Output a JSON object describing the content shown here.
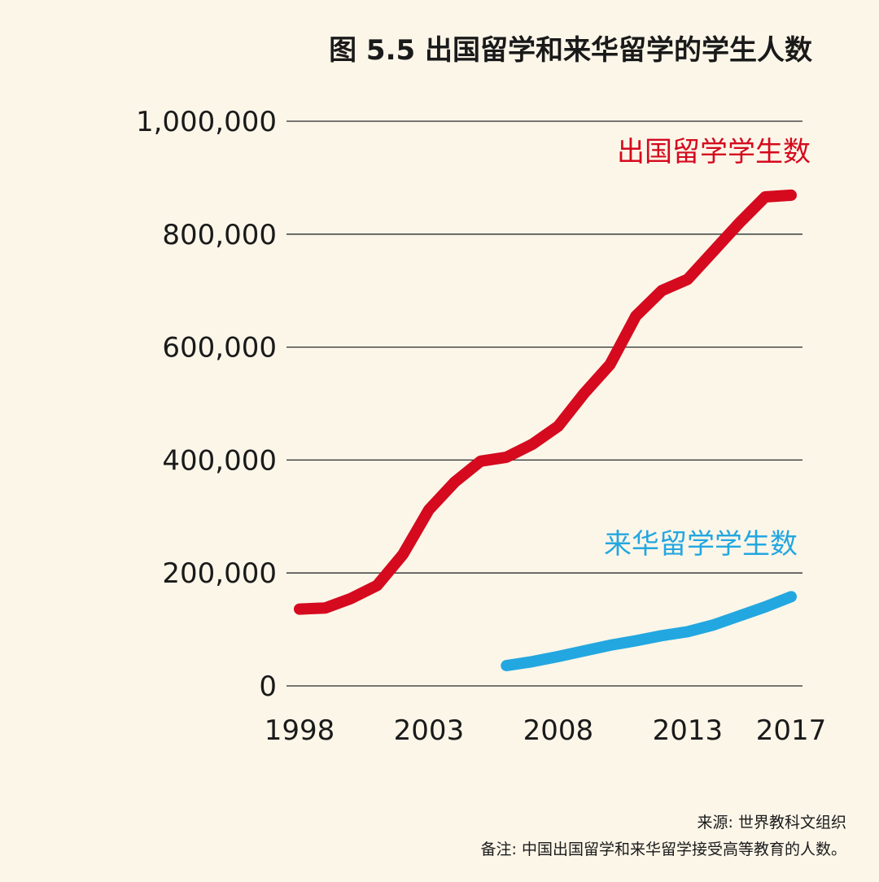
{
  "chart_data": {
    "type": "line",
    "title": "图 5.5 出国留学和来华留学的学生人数",
    "ylim": [
      0,
      1000000
    ],
    "xlim": [
      1998,
      2017
    ],
    "y_ticks": [
      {
        "value": 0,
        "label": "0"
      },
      {
        "value": 200000,
        "label": "200,000"
      },
      {
        "value": 400000,
        "label": "400,000"
      },
      {
        "value": 600000,
        "label": "600,000"
      },
      {
        "value": 800000,
        "label": "800,000"
      },
      {
        "value": 1000000,
        "label": "1,000,000"
      }
    ],
    "x_ticks": [
      {
        "value": 1998,
        "label": "1998"
      },
      {
        "value": 2003,
        "label": "2003"
      },
      {
        "value": 2008,
        "label": "2008"
      },
      {
        "value": 2013,
        "label": "2013"
      },
      {
        "value": 2017,
        "label": "2017"
      }
    ],
    "grid": true,
    "series": [
      {
        "name": "出国留学学生数",
        "color": "#d50a1e",
        "points": [
          [
            1998,
            136000
          ],
          [
            1999,
            138000
          ],
          [
            2000,
            155000
          ],
          [
            2001,
            178000
          ],
          [
            2002,
            233000
          ],
          [
            2003,
            312000
          ],
          [
            2004,
            361000
          ],
          [
            2005,
            398000
          ],
          [
            2006,
            405000
          ],
          [
            2007,
            428000
          ],
          [
            2008,
            460000
          ],
          [
            2009,
            518000
          ],
          [
            2010,
            569000
          ],
          [
            2011,
            655000
          ],
          [
            2012,
            700000
          ],
          [
            2013,
            720000
          ],
          [
            2014,
            770000
          ],
          [
            2015,
            820000
          ],
          [
            2016,
            866000
          ],
          [
            2017,
            869000
          ]
        ]
      },
      {
        "name": "来华留学学生数",
        "color": "#23a7e0",
        "points": [
          [
            2006,
            36000
          ],
          [
            2007,
            43000
          ],
          [
            2008,
            52000
          ],
          [
            2009,
            62000
          ],
          [
            2010,
            72000
          ],
          [
            2011,
            80000
          ],
          [
            2012,
            89000
          ],
          [
            2013,
            96000
          ],
          [
            2014,
            108000
          ],
          [
            2015,
            124000
          ],
          [
            2016,
            140000
          ],
          [
            2017,
            158000
          ]
        ]
      }
    ]
  },
  "notes": {
    "source": "来源: 世界教科文组织",
    "remark": "备注: 中国出国留学和来华留学接受高等教育的人数。"
  }
}
